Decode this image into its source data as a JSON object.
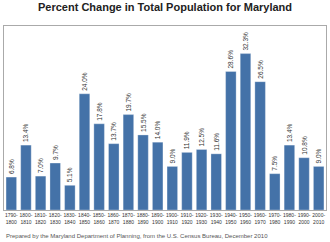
{
  "chart_data": {
    "type": "bar",
    "title": "Percent Change in Total Population for Maryland",
    "categories": [
      "1790-\n1800",
      "1800-\n1810",
      "1810-\n1820",
      "1820-\n1830",
      "1830-\n1840",
      "1840-\n1850",
      "1850-\n1860",
      "1860-\n1870",
      "1870-\n1880",
      "1880-\n1890",
      "1890-\n1900",
      "1900-\n1910",
      "1910-\n1920",
      "1920-\n1930",
      "1930-\n1940",
      "1940-\n1950",
      "1950-\n1960",
      "1960-\n1970",
      "1970-\n1980",
      "1980-\n1990",
      "1990-\n2000",
      "2000-\n2010"
    ],
    "values": [
      6.8,
      13.4,
      7.0,
      9.7,
      5.1,
      24.0,
      17.8,
      13.7,
      19.7,
      15.5,
      14.0,
      9.0,
      11.9,
      12.5,
      11.6,
      28.6,
      32.3,
      26.5,
      7.5,
      13.4,
      10.8,
      9.0
    ],
    "value_labels": [
      "6.8%",
      "13.4%",
      "7.0%",
      "9.7%",
      "5.1%",
      "24.0%",
      "17.8%",
      "13.7%",
      "19.7%",
      "15.5%",
      "14.0%",
      "9.0%",
      "11.9%",
      "12.5%",
      "11.6%",
      "28.6%",
      "32.3%",
      "26.5%",
      "7.5%",
      "13.4%",
      "10.8%",
      "9.0%"
    ],
    "data_labels": true,
    "color": "#4472a8",
    "ylim": [
      0,
      38
    ],
    "grid": false,
    "tick_labels": "x",
    "annotations": [
      "Prepared by the Maryland Department of Planning, from the U.S. Census Bureau, December 2010"
    ]
  }
}
